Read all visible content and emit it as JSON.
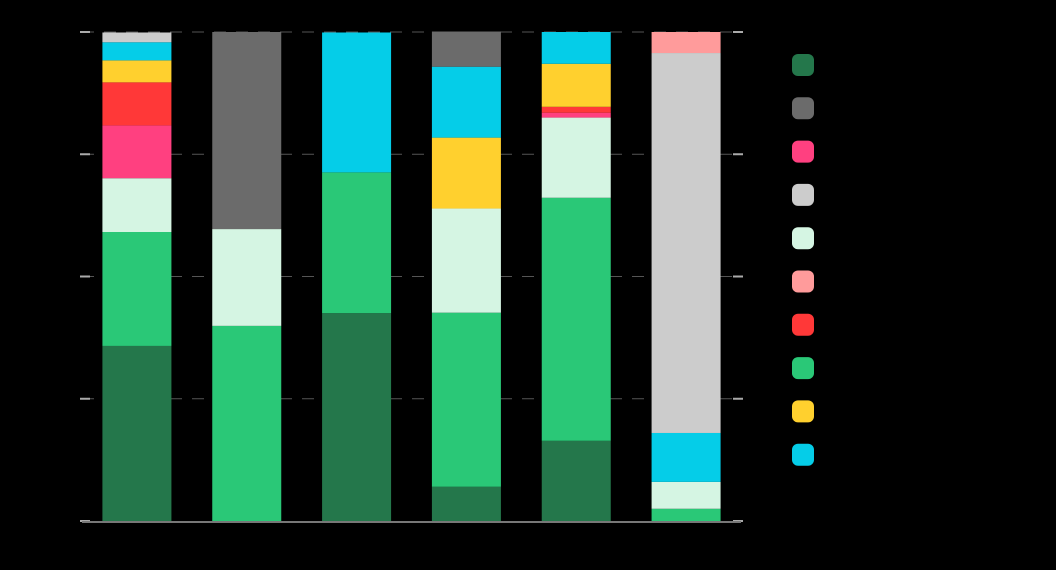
{
  "chart_data": {
    "type": "bar",
    "stacked": true,
    "title": "",
    "xlabel": "",
    "ylabel": "",
    "ylim": [
      0,
      100
    ],
    "yticks": [
      0,
      25,
      50,
      75,
      100
    ],
    "grid": true,
    "legend_placement": "right",
    "categories": [
      "",
      "",
      "",
      "",
      "",
      ""
    ],
    "series": [
      {
        "color": "#24774b",
        "values": [
          35.8,
          0,
          42.5,
          7.0,
          16.4,
          0
        ]
      },
      {
        "color": "#6b6b6b",
        "values": [
          0,
          40.3,
          0,
          7.2,
          0,
          0
        ]
      },
      {
        "color": "#ff4080",
        "values": [
          10.8,
          0,
          0,
          0,
          1.0,
          0
        ]
      },
      {
        "color": "#cccccc",
        "values": [
          2.0,
          0,
          0,
          0,
          0,
          77.7
        ]
      },
      {
        "color": "#d5f5e3",
        "values": [
          11.0,
          19.8,
          0,
          21.3,
          16.4,
          5.5
        ]
      },
      {
        "color": "#ff9b9b",
        "values": [
          0,
          0,
          0,
          0,
          0,
          4.3
        ]
      },
      {
        "color": "#ff3838",
        "values": [
          8.8,
          0,
          0,
          0,
          1.2,
          0
        ]
      },
      {
        "color": "#2ac877",
        "values": [
          23.3,
          39.9,
          28.8,
          35.6,
          49.7,
          2.5
        ]
      },
      {
        "color": "#ffd02e",
        "values": [
          4.5,
          0,
          0,
          14.5,
          8.8,
          0
        ]
      },
      {
        "color": "#05cde8",
        "values": [
          3.7,
          0,
          28.6,
          14.5,
          6.5,
          10.0
        ]
      }
    ],
    "stack_order": [
      [
        0,
        7,
        4,
        2,
        6,
        8,
        9,
        3
      ],
      [
        7,
        4,
        1
      ],
      [
        0,
        7,
        9
      ],
      [
        0,
        7,
        4,
        8,
        9,
        1
      ],
      [
        0,
        7,
        4,
        2,
        6,
        8,
        9
      ],
      [
        7,
        4,
        9,
        3,
        5
      ]
    ]
  }
}
